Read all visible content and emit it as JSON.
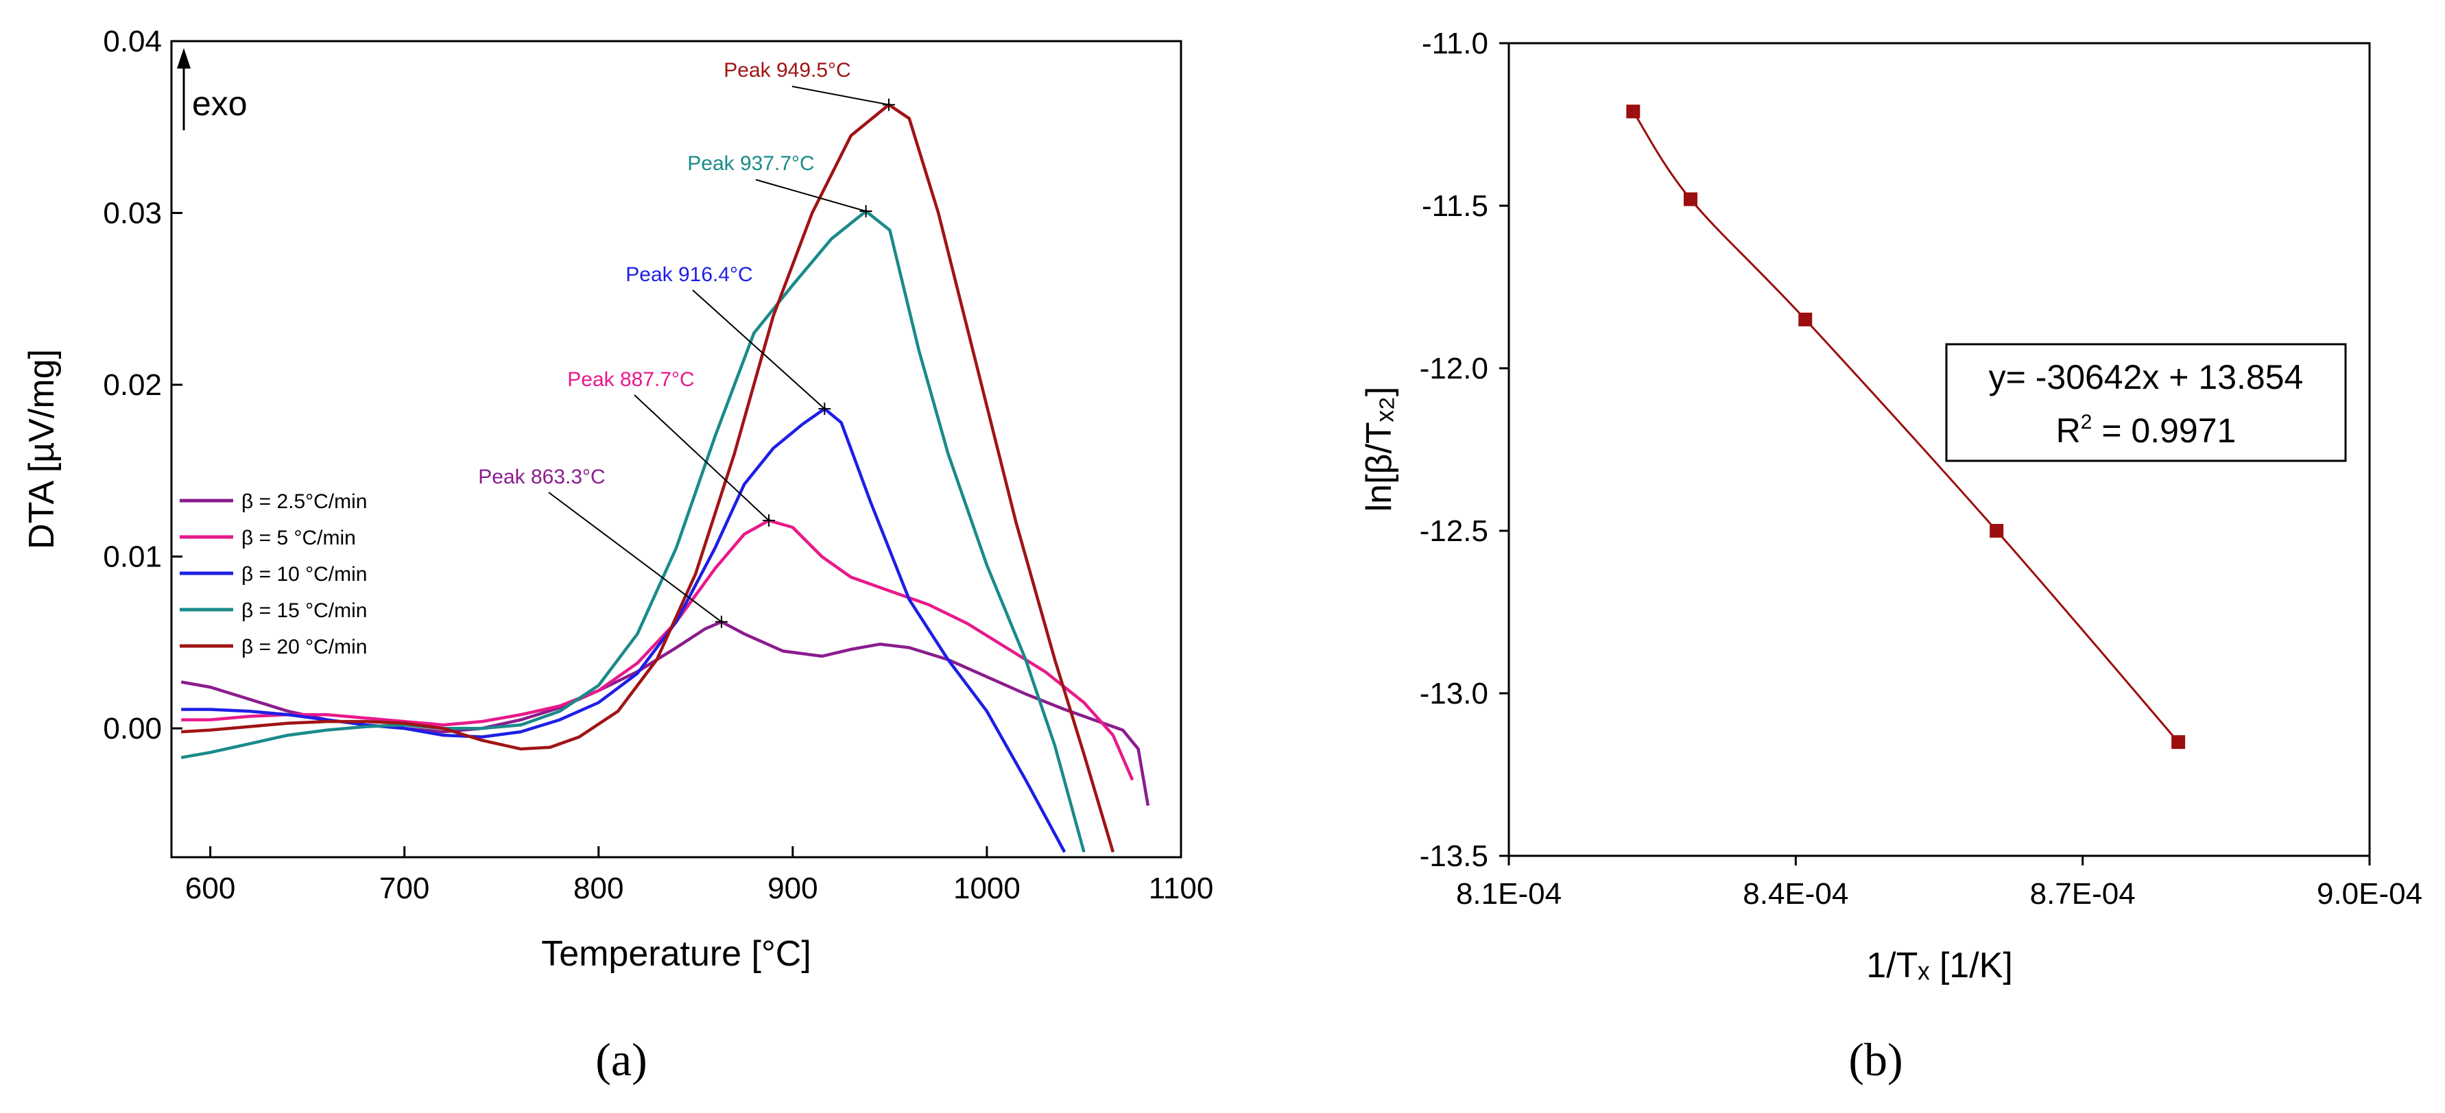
{
  "panel_a_label": "(a)",
  "panel_b_label": "(b)",
  "chart_data": [
    {
      "type": "line",
      "panel": "a",
      "xlabel": "Temperature [°C]",
      "ylabel": "DTA [µV/mg]",
      "xlim": [
        580,
        1100
      ],
      "ylim": [
        -0.0075,
        0.04
      ],
      "xticks": [
        "600",
        "700",
        "800",
        "900",
        "1000",
        "1100"
      ],
      "yticks": [
        "0.00",
        "0.01",
        "0.02",
        "0.03",
        "0.04"
      ],
      "ytick_values": [
        0,
        0.01,
        0.02,
        0.03,
        0.04
      ],
      "xtick_values": [
        600,
        700,
        800,
        900,
        1000,
        1100
      ],
      "exo_label": "exo",
      "legend_position": "middle-left",
      "series": [
        {
          "name": "β = 2.5°C/min",
          "color": "#8B1C8E",
          "peak_label": "Peak 863.3°C",
          "peak": [
            863.3,
            0.0062
          ],
          "points": [
            [
              585,
              0.0027
            ],
            [
              600,
              0.0024
            ],
            [
              620,
              0.0017
            ],
            [
              640,
              0.001
            ],
            [
              660,
              0.0005
            ],
            [
              680,
              0.0002
            ],
            [
              700,
              0.0
            ],
            [
              720,
              -0.0002
            ],
            [
              740,
              0.0
            ],
            [
              760,
              0.0005
            ],
            [
              780,
              0.0012
            ],
            [
              800,
              0.0022
            ],
            [
              820,
              0.0033
            ],
            [
              840,
              0.0047
            ],
            [
              855,
              0.0058
            ],
            [
              863.3,
              0.0062
            ],
            [
              875,
              0.0055
            ],
            [
              895,
              0.0045
            ],
            [
              915,
              0.0042
            ],
            [
              930,
              0.0046
            ],
            [
              945,
              0.0049
            ],
            [
              960,
              0.0047
            ],
            [
              980,
              0.004
            ],
            [
              1000,
              0.003
            ],
            [
              1020,
              0.002
            ],
            [
              1040,
              0.0011
            ],
            [
              1060,
              0.0003
            ],
            [
              1070,
              -0.0001
            ],
            [
              1078,
              -0.0012
            ],
            [
              1083,
              -0.0045
            ]
          ]
        },
        {
          "name": "β =   5 °C/min",
          "color": "#E8198B",
          "peak_label": "Peak 887.7°C",
          "peak": [
            887.7,
            0.0121
          ],
          "points": [
            [
              585,
              0.0005
            ],
            [
              600,
              0.0005
            ],
            [
              620,
              0.0007
            ],
            [
              640,
              0.0008
            ],
            [
              660,
              0.0008
            ],
            [
              680,
              0.0006
            ],
            [
              700,
              0.0004
            ],
            [
              720,
              0.0002
            ],
            [
              740,
              0.0004
            ],
            [
              760,
              0.0008
            ],
            [
              780,
              0.0013
            ],
            [
              800,
              0.0022
            ],
            [
              820,
              0.0038
            ],
            [
              840,
              0.0062
            ],
            [
              860,
              0.0093
            ],
            [
              875,
              0.0113
            ],
            [
              887.7,
              0.0121
            ],
            [
              900,
              0.0117
            ],
            [
              915,
              0.01
            ],
            [
              930,
              0.0088
            ],
            [
              950,
              0.008
            ],
            [
              970,
              0.0072
            ],
            [
              990,
              0.0061
            ],
            [
              1010,
              0.0047
            ],
            [
              1030,
              0.0033
            ],
            [
              1050,
              0.0015
            ],
            [
              1065,
              -0.0004
            ],
            [
              1075,
              -0.003
            ]
          ]
        },
        {
          "name": "β = 10 °C/min",
          "color": "#1E1EE6",
          "peak_label": "Peak 916.4°C",
          "peak": [
            916.4,
            0.0186
          ],
          "points": [
            [
              585,
              0.0011
            ],
            [
              600,
              0.0011
            ],
            [
              620,
              0.001
            ],
            [
              640,
              0.0008
            ],
            [
              660,
              0.0005
            ],
            [
              680,
              0.0002
            ],
            [
              700,
              0.0
            ],
            [
              720,
              -0.0004
            ],
            [
              740,
              -0.0005
            ],
            [
              760,
              -0.0002
            ],
            [
              780,
              0.0005
            ],
            [
              800,
              0.0015
            ],
            [
              820,
              0.0032
            ],
            [
              840,
              0.0062
            ],
            [
              860,
              0.0105
            ],
            [
              875,
              0.0142
            ],
            [
              890,
              0.0163
            ],
            [
              905,
              0.0177
            ],
            [
              916.4,
              0.0186
            ],
            [
              925,
              0.0178
            ],
            [
              940,
              0.0132
            ],
            [
              960,
              0.0075
            ],
            [
              980,
              0.004
            ],
            [
              1000,
              0.001
            ],
            [
              1020,
              -0.003
            ],
            [
              1040,
              -0.0072
            ]
          ]
        },
        {
          "name": "β = 15 °C/min",
          "color": "#1A8A8A",
          "peak_label": "Peak 937.7°C",
          "peak": [
            937.7,
            0.0301
          ],
          "points": [
            [
              585,
              -0.0017
            ],
            [
              600,
              -0.0014
            ],
            [
              620,
              -0.0009
            ],
            [
              640,
              -0.0004
            ],
            [
              660,
              -0.0001
            ],
            [
              680,
              0.0001
            ],
            [
              700,
              0.0002
            ],
            [
              720,
              0.0
            ],
            [
              740,
              0.0
            ],
            [
              760,
              0.0002
            ],
            [
              780,
              0.001
            ],
            [
              800,
              0.0025
            ],
            [
              820,
              0.0055
            ],
            [
              840,
              0.0105
            ],
            [
              860,
              0.017
            ],
            [
              880,
              0.023
            ],
            [
              900,
              0.0258
            ],
            [
              920,
              0.0285
            ],
            [
              937.7,
              0.0301
            ],
            [
              950,
              0.029
            ],
            [
              965,
              0.022
            ],
            [
              980,
              0.016
            ],
            [
              1000,
              0.0095
            ],
            [
              1020,
              0.004
            ],
            [
              1035,
              -0.001
            ],
            [
              1050,
              -0.0072
            ]
          ]
        },
        {
          "name": "β = 20 °C/min",
          "color": "#A01414",
          "peak_label": "Peak 949.5°C",
          "peak": [
            949.5,
            0.0363
          ],
          "points": [
            [
              585,
              -0.0002
            ],
            [
              600,
              -0.0001
            ],
            [
              620,
              0.0001
            ],
            [
              640,
              0.0003
            ],
            [
              660,
              0.0004
            ],
            [
              680,
              0.0004
            ],
            [
              700,
              0.0003
            ],
            [
              720,
              0.0
            ],
            [
              740,
              -0.0007
            ],
            [
              760,
              -0.0012
            ],
            [
              775,
              -0.0011
            ],
            [
              790,
              -0.0005
            ],
            [
              810,
              0.001
            ],
            [
              830,
              0.004
            ],
            [
              850,
              0.009
            ],
            [
              870,
              0.016
            ],
            [
              890,
              0.024
            ],
            [
              910,
              0.03
            ],
            [
              930,
              0.0345
            ],
            [
              949.5,
              0.0363
            ],
            [
              960,
              0.0355
            ],
            [
              975,
              0.03
            ],
            [
              995,
              0.021
            ],
            [
              1015,
              0.012
            ],
            [
              1035,
              0.004
            ],
            [
              1050,
              -0.0015
            ],
            [
              1065,
              -0.0072
            ]
          ]
        }
      ]
    },
    {
      "type": "scatter",
      "panel": "b",
      "xlabel": "1/Tₓ [1/K]",
      "ylabel": "ln[β/Tₓ₂]",
      "xlim": [
        0.00081,
        0.0009
      ],
      "ylim": [
        -13.5,
        -11.0
      ],
      "xticks": [
        "8.1E-04",
        "8.4E-04",
        "8.7E-04",
        "9.0E-04"
      ],
      "xtick_values": [
        0.00081,
        0.00084,
        0.00087,
        0.0009
      ],
      "yticks": [
        "-11.0",
        "-11.5",
        "-12.0",
        "-12.5",
        "-13.0",
        "-13.5"
      ],
      "ytick_values": [
        -11.0,
        -11.5,
        -12.0,
        -12.5,
        -13.0,
        -13.5
      ],
      "marker_color": "#9B0F0F",
      "points": [
        [
          0.000823,
          -11.21
        ],
        [
          0.000829,
          -11.48
        ],
        [
          0.000841,
          -11.85
        ],
        [
          0.000861,
          -12.5
        ],
        [
          0.00088,
          -13.15
        ]
      ],
      "fit_equation": "y= -30642x + 13.854",
      "r_squared_prefix": "R",
      "r_squared_sup": "2",
      "r_squared_value": " = 0.9971"
    }
  ]
}
